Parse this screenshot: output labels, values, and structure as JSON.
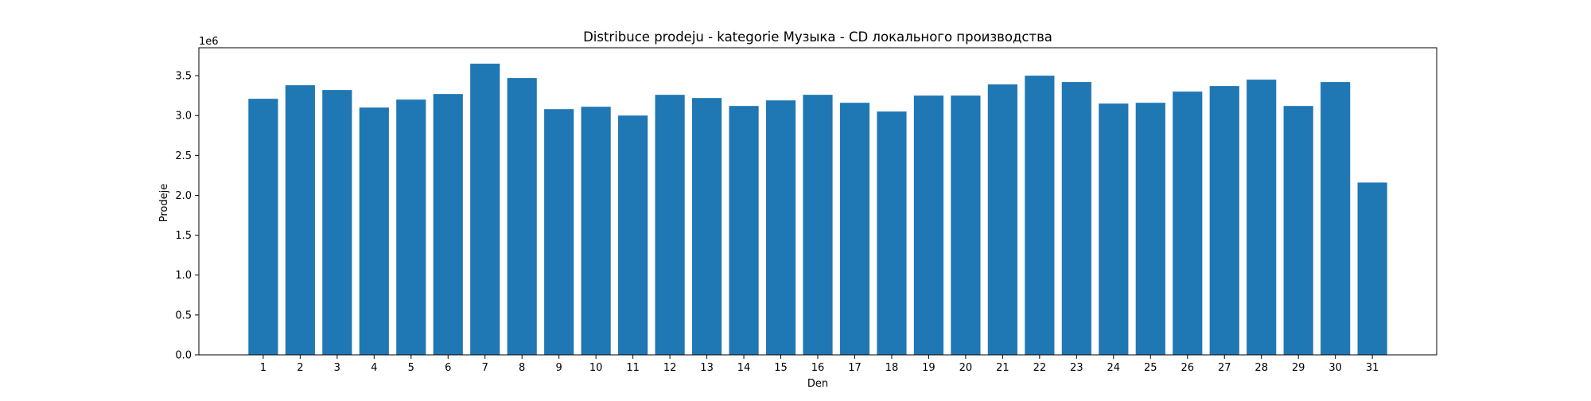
{
  "chart_data": {
    "type": "bar",
    "title": "Distribuce prodeju  - kategorie Музыка - CD локального производства",
    "xlabel": "Den",
    "ylabel": "Prodeje",
    "offset_text": "1e6",
    "categories": [
      "1",
      "2",
      "3",
      "4",
      "5",
      "6",
      "7",
      "8",
      "9",
      "10",
      "11",
      "12",
      "13",
      "14",
      "15",
      "16",
      "17",
      "18",
      "19",
      "20",
      "21",
      "22",
      "23",
      "24",
      "25",
      "26",
      "27",
      "28",
      "29",
      "30",
      "31"
    ],
    "values": [
      3210000,
      3380000,
      3320000,
      3100000,
      3200000,
      3270000,
      3650000,
      3470000,
      3080000,
      3110000,
      3000000,
      3260000,
      3220000,
      3120000,
      3190000,
      3260000,
      3160000,
      3050000,
      3250000,
      3250000,
      3390000,
      3500000,
      3420000,
      3150000,
      3160000,
      3300000,
      3370000,
      3450000,
      3120000,
      3420000,
      2160000
    ],
    "ylim": [
      0,
      3850000
    ],
    "yticks": [
      {
        "value": 0,
        "label": "0.0"
      },
      {
        "value": 500000,
        "label": "0.5"
      },
      {
        "value": 1000000,
        "label": "1.0"
      },
      {
        "value": 1500000,
        "label": "1.5"
      },
      {
        "value": 2000000,
        "label": "2.0"
      },
      {
        "value": 2500000,
        "label": "2.5"
      },
      {
        "value": 3000000,
        "label": "3.0"
      },
      {
        "value": 3500000,
        "label": "3.5"
      }
    ],
    "bar_color": "#1f77b4",
    "grid": false,
    "legend": "none"
  }
}
